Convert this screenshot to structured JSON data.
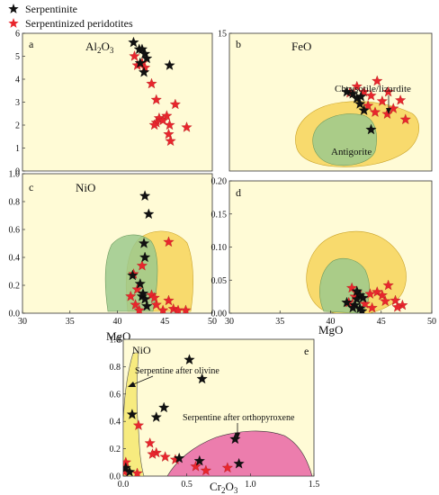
{
  "legend": {
    "serpentinite": "Serpentinite",
    "peridotite": "Serpentinized peridotites",
    "serpentinite_color": "#111111",
    "peridotite_color": "#e8262d"
  },
  "colors": {
    "panel_bg": "#fffbd6",
    "axis": "#333333",
    "field_yellow": "#f7d45a",
    "field_green": "#9cc98d",
    "field_pink": "#ea6fa8"
  },
  "chart_data": [
    {
      "type": "scatter",
      "id": "a",
      "label": "a",
      "element": "Al",
      "element_sub": "2",
      "element_tail": "O",
      "element_sub2": "3",
      "xlim": [
        30,
        50
      ],
      "ylim": [
        0,
        6
      ],
      "yticks": [
        "0",
        "1",
        "2",
        "3",
        "4",
        "5",
        "6"
      ],
      "xticks": [],
      "xlabel": "",
      "series": [
        {
          "name": "Serpentinite",
          "marker": "black-star",
          "x": [
            41.7,
            42.3,
            42.6,
            42.9,
            43.1,
            42.4,
            42.8,
            45.5
          ],
          "y": [
            5.6,
            5.3,
            5.3,
            5.1,
            4.9,
            4.7,
            4.3,
            4.6
          ]
        },
        {
          "name": "Serpentinized peridotites",
          "marker": "red-star",
          "x": [
            41.8,
            42.1,
            42.6,
            42.9,
            43.6,
            44.1,
            44.4,
            44.1,
            43.9,
            45.2,
            45.5,
            46.1,
            47.3,
            45.4,
            45.6,
            44.8
          ],
          "y": [
            5.0,
            4.6,
            4.7,
            4.5,
            3.8,
            3.1,
            2.3,
            2.1,
            2.0,
            2.4,
            2.0,
            2.9,
            1.9,
            1.6,
            1.3,
            2.2
          ]
        }
      ]
    },
    {
      "type": "scatter",
      "id": "b",
      "label": "b",
      "element": "FeO",
      "xlim": [
        30,
        50
      ],
      "ylim": [
        0,
        15
      ],
      "yticks": [
        "15"
      ],
      "xticks": [],
      "xlabel": "",
      "annotations": [
        "Chrysotile/lizardite",
        "Antigorite"
      ],
      "series": [
        {
          "name": "Serpentinite",
          "marker": "black-star",
          "x": [
            41.6,
            42.2,
            42.6,
            42.9,
            43.3,
            43.0,
            44.0
          ],
          "y": [
            8.6,
            8.4,
            7.9,
            7.3,
            6.6,
            8.1,
            4.5
          ]
        },
        {
          "name": "Serpentinized peridotites",
          "marker": "red-star",
          "x": [
            41.9,
            42.6,
            43.3,
            44.0,
            44.6,
            45.1,
            45.7,
            46.2,
            46.9,
            47.4,
            44.4,
            43.7,
            45.6
          ],
          "y": [
            8.5,
            9.2,
            8.6,
            8.2,
            9.8,
            7.6,
            8.6,
            6.8,
            7.7,
            5.6,
            6.4,
            7.1,
            6.2
          ]
        }
      ]
    },
    {
      "type": "scatter",
      "id": "c",
      "label": "c",
      "element": "NiO",
      "xlim": [
        30,
        50
      ],
      "ylim": [
        0,
        1.0
      ],
      "yticks": [
        "0.0",
        "0.2",
        "0.4",
        "0.6",
        "0.8",
        "1.0"
      ],
      "xticks": [
        "30",
        "35",
        "40",
        "45",
        "50"
      ],
      "xlabel": "MgO",
      "series": [
        {
          "name": "Serpentinite",
          "marker": "black-star",
          "x": [
            42.9,
            43.3,
            42.8,
            42.9,
            41.6,
            42.4,
            42.6,
            42.9,
            43.1,
            42.7
          ],
          "y": [
            0.84,
            0.71,
            0.5,
            0.4,
            0.27,
            0.21,
            0.12,
            0.1,
            0.05,
            0.14
          ]
        },
        {
          "name": "Serpentinized peridotites",
          "marker": "red-star",
          "x": [
            45.4,
            42.6,
            41.7,
            41.4,
            41.9,
            42.3,
            43.6,
            44.1,
            44.8,
            45.4,
            45.9,
            46.4,
            47.2,
            43.9,
            42.1
          ],
          "y": [
            0.51,
            0.34,
            0.28,
            0.12,
            0.06,
            0.02,
            0.13,
            0.06,
            0.02,
            0.09,
            0.03,
            0.02,
            0.02,
            0.11,
            0.17
          ]
        }
      ]
    },
    {
      "type": "scatter",
      "id": "d",
      "label": "d",
      "element": "",
      "xlim": [
        30,
        50
      ],
      "ylim": [
        0,
        0.2
      ],
      "yticks": [
        "0.00",
        "0.05",
        "0.10",
        "0.15",
        "0.20"
      ],
      "xticks": [
        "30",
        "35",
        "40",
        "45",
        "50"
      ],
      "xlabel": "MgO",
      "series": [
        {
          "name": "Serpentinite",
          "marker": "black-star",
          "x": [
            42.6,
            42.9,
            43.2,
            41.6,
            42.4,
            42.6,
            42.9,
            43.1,
            42.2
          ],
          "y": [
            0.033,
            0.027,
            0.023,
            0.016,
            0.012,
            0.021,
            0.007,
            0.003,
            0.008
          ]
        },
        {
          "name": "Serpentinized peridotites",
          "marker": "red-star",
          "x": [
            42.1,
            42.6,
            42.4,
            43.9,
            44.6,
            45.1,
            45.7,
            46.4,
            47.1,
            41.8,
            44.1,
            45.4,
            43.4,
            46.6
          ],
          "y": [
            0.038,
            0.031,
            0.025,
            0.029,
            0.032,
            0.027,
            0.042,
            0.019,
            0.012,
            0.016,
            0.008,
            0.018,
            0.014,
            0.009
          ]
        }
      ]
    },
    {
      "type": "scatter",
      "id": "e",
      "label": "e",
      "element": "NiO",
      "xlim": [
        0,
        1.5
      ],
      "ylim": [
        0,
        1.0
      ],
      "yticks": [
        "0.0",
        "0.2",
        "0.4",
        "0.6",
        "0.8",
        "1.0"
      ],
      "xticks": [
        "0.0",
        "0.5",
        "1.0",
        "1.5"
      ],
      "xlabel": "Cr",
      "xlabel_sub": "2",
      "xlabel_mid": "O",
      "xlabel_sub2": "3",
      "annotations": [
        "Serpentine after olivine",
        "Serpentine after orthopyroxene"
      ],
      "series": [
        {
          "name": "Serpentinite",
          "marker": "black-star",
          "x": [
            0.52,
            0.62,
            0.32,
            0.26,
            0.07,
            0.88,
            0.6,
            0.44,
            0.02,
            0.05,
            0.91
          ],
          "y": [
            0.85,
            0.71,
            0.5,
            0.43,
            0.45,
            0.27,
            0.11,
            0.13,
            0.06,
            0.03,
            0.09
          ]
        },
        {
          "name": "Serpentinized peridotites",
          "marker": "red-star",
          "x": [
            0.12,
            0.21,
            0.26,
            0.33,
            0.41,
            0.57,
            0.65,
            0.82,
            0.02,
            0.01,
            0.11,
            0.23
          ],
          "y": [
            0.37,
            0.24,
            0.17,
            0.14,
            0.12,
            0.07,
            0.04,
            0.06,
            0.1,
            0.03,
            0.02,
            0.16
          ]
        }
      ]
    }
  ]
}
